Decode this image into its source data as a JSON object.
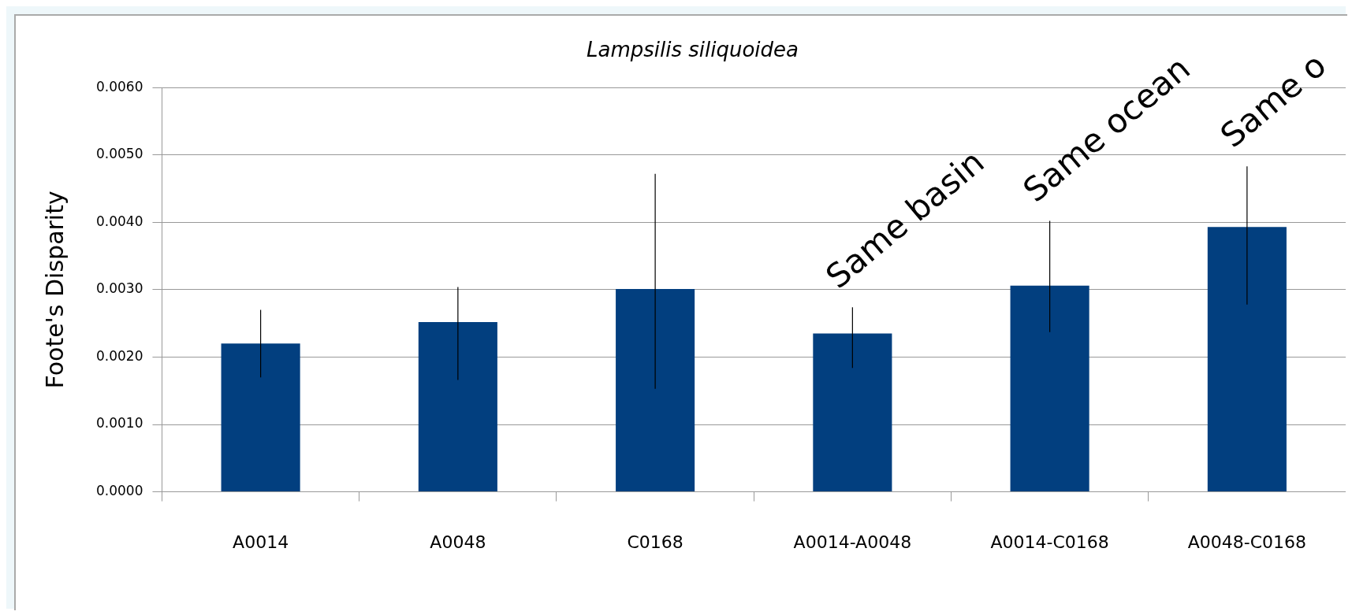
{
  "chart_data": {
    "type": "bar",
    "title": "Lampsilis siliquoidea",
    "ylabel": "Foote's Disparity",
    "categories": [
      "A0014",
      "A0048",
      "C0168",
      "A0014-A0048",
      "A0014-C0168",
      "A0048-C0168"
    ],
    "values": [
      0.0022,
      0.00252,
      0.00301,
      0.00235,
      0.00306,
      0.00393
    ],
    "color": "#023f7f",
    "errors": [
      [
        0.0017,
        0.0027
      ],
      [
        0.00166,
        0.00304
      ],
      [
        0.00153,
        0.00472
      ],
      [
        0.00184,
        0.00274
      ],
      [
        0.00237,
        0.00402
      ],
      [
        0.00278,
        0.00483
      ]
    ],
    "ylim": [
      0,
      0.006
    ],
    "yticks": [
      {
        "value": 0,
        "label": "0.0000"
      },
      {
        "value": 0.001,
        "label": "0.0010"
      },
      {
        "value": 0.002,
        "label": "0.0020"
      },
      {
        "value": 0.003,
        "label": "0.0030"
      },
      {
        "value": 0.004,
        "label": "0.0040"
      },
      {
        "value": 0.005,
        "label": "0.0050"
      },
      {
        "value": 0.006,
        "label": "0.0060"
      }
    ],
    "grid": "y",
    "annotations": [
      {
        "text": "Same basin",
        "x": "A0014-A0048",
        "y": 0.00274
      },
      {
        "text": "Same ocean",
        "x": "A0014-C0168",
        "y": 0.00402
      },
      {
        "text": "Same o",
        "x": "A0048-C0168",
        "y": 0.00483
      }
    ]
  }
}
